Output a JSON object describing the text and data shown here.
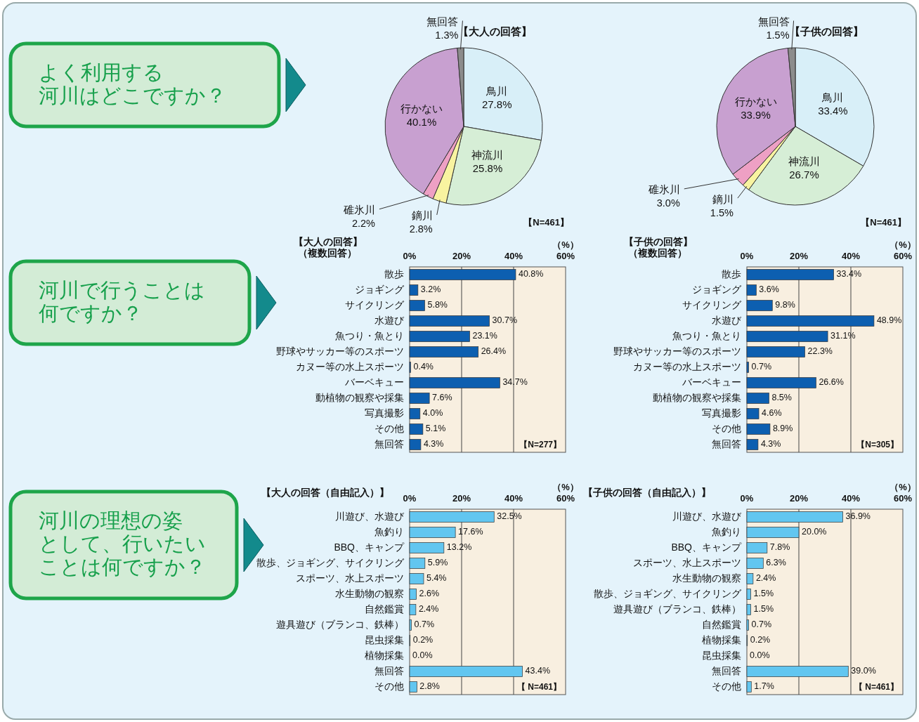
{
  "chart_data": [
    {
      "type": "other",
      "title": "よく利用する河川はどこですか？"
    },
    {
      "type": "pie",
      "title": "【大人の回答】",
      "categories": [
        "鳥川",
        "神流川",
        "鏑川",
        "碓氷川",
        "行かない",
        "無回答"
      ],
      "values": [
        27.8,
        25.8,
        2.8,
        2.2,
        40.1,
        1.3
      ],
      "value_labels": [
        "27.8%",
        "25.8%",
        "2.8%",
        "2.2%",
        "40.1%",
        "1.3%"
      ],
      "colors": [
        "#d8eff8",
        "#d6eed6",
        "#f8f3a0",
        "#eea0c4",
        "#c8a0d0",
        "#8c8c8c"
      ],
      "annotations": [
        "【N=461】"
      ]
    },
    {
      "type": "pie",
      "title": "【子供の回答】",
      "categories": [
        "鳥川",
        "神流川",
        "鏑川",
        "碓氷川",
        "行かない",
        "無回答"
      ],
      "values": [
        33.4,
        26.7,
        1.5,
        3.0,
        33.9,
        1.5
      ],
      "value_labels": [
        "33.4%",
        "26.7%",
        "1.5%",
        "3.0%",
        "33.9%",
        "1.5%"
      ],
      "colors": [
        "#d8eff8",
        "#d6eed6",
        "#f8f3a0",
        "#eea0c4",
        "#c8a0d0",
        "#8c8c8c"
      ],
      "annotations": [
        "【N=461】"
      ]
    },
    {
      "type": "other",
      "title": "河川で行うことは何ですか？"
    },
    {
      "type": "bar",
      "orientation": "horizontal",
      "title": "【大人の回答】",
      "subtitle": "（複数回答）",
      "xlabel": "（%）",
      "categories": [
        "散歩",
        "ジョギング",
        "サイクリング",
        "水遊び",
        "魚つり・魚とり",
        "野球やサッカー等のスポーツ",
        "カヌー等の水上スポーツ",
        "バーベキュー",
        "動植物の観察や採集",
        "写真撮影",
        "その他",
        "無回答"
      ],
      "series": [
        {
          "color": "#0d5fb0",
          "values": [
            40.8,
            3.2,
            5.8,
            30.7,
            23.1,
            26.4,
            0.4,
            34.7,
            7.6,
            4.0,
            5.1,
            4.3
          ],
          "value_labels": [
            "40.8%",
            "3.2%",
            "5.8%",
            "30.7%",
            "23.1%",
            "26.4%",
            "0.4%",
            "34.7%",
            "7.6%",
            "4.0%",
            "5.1%",
            "4.3%"
          ]
        }
      ],
      "xlim": [
        0,
        60
      ],
      "xticks": [
        {
          "value": 0,
          "label": "0%"
        },
        {
          "value": 20,
          "label": "20%"
        },
        {
          "value": 40,
          "label": "40%"
        },
        {
          "value": 60,
          "label": "60%"
        }
      ],
      "grid": "x",
      "annotations": [
        "【N=277】"
      ]
    },
    {
      "type": "bar",
      "orientation": "horizontal",
      "title": "【子供の回答】",
      "subtitle": "（複数回答）",
      "xlabel": "（%）",
      "categories": [
        "散歩",
        "ジョギング",
        "サイクリング",
        "水遊び",
        "魚つり・魚とり",
        "野球やサッカー等のスポーツ",
        "カヌー等の水上スポーツ",
        "バーベキュー",
        "動植物の観察や採集",
        "写真撮影",
        "その他",
        "無回答"
      ],
      "series": [
        {
          "color": "#0d5fb0",
          "values": [
            33.4,
            3.6,
            9.8,
            48.9,
            31.1,
            22.3,
            0.7,
            26.6,
            8.5,
            4.6,
            8.9,
            4.3
          ],
          "value_labels": [
            "33.4%",
            "3.6%",
            "9.8%",
            "48.9%",
            "31.1%",
            "22.3%",
            "0.7%",
            "26.6%",
            "8.5%",
            "4.6%",
            "8.9%",
            "4.3%"
          ]
        }
      ],
      "xlim": [
        0,
        60
      ],
      "xticks": [
        {
          "value": 0,
          "label": "0%"
        },
        {
          "value": 20,
          "label": "20%"
        },
        {
          "value": 40,
          "label": "40%"
        },
        {
          "value": 60,
          "label": "60%"
        }
      ],
      "grid": "x",
      "annotations": [
        "【N=305】"
      ]
    },
    {
      "type": "other",
      "title": "河川の理想の姿として、行いたいことは何ですか？"
    },
    {
      "type": "bar",
      "orientation": "horizontal",
      "title": "【大人の回答（自由記入）】",
      "xlabel": "（%）",
      "categories": [
        "川遊び、水遊び",
        "魚釣り",
        "BBQ、キャンプ",
        "散歩、ジョギング、サイクリング",
        "スポーツ、水上スポーツ",
        "水生動物の観察",
        "自然鑑賞",
        "遊具遊び（ブランコ、鉄棒）",
        "昆虫採集",
        "植物採集",
        "無回答",
        "その他"
      ],
      "series": [
        {
          "color": "#62c6f0",
          "values": [
            32.5,
            17.6,
            13.2,
            5.9,
            5.4,
            2.6,
            2.4,
            0.7,
            0.2,
            0.0,
            43.4,
            2.8
          ],
          "value_labels": [
            "32.5%",
            "17.6%",
            "13.2%",
            "5.9%",
            "5.4%",
            "2.6%",
            "2.4%",
            "0.7%",
            "0.2%",
            "0.0%",
            "43.4%",
            "2.8%"
          ]
        }
      ],
      "xlim": [
        0,
        60
      ],
      "xticks": [
        {
          "value": 0,
          "label": "0%"
        },
        {
          "value": 20,
          "label": "20%"
        },
        {
          "value": 40,
          "label": "40%"
        },
        {
          "value": 60,
          "label": "60%"
        }
      ],
      "grid": "x",
      "annotations": [
        "【 N=461】"
      ]
    },
    {
      "type": "bar",
      "orientation": "horizontal",
      "title": "【子供の回答（自由記入）】",
      "xlabel": "（%）",
      "categories": [
        "川遊び、水遊び",
        "魚釣り",
        "BBQ、キャンプ",
        "スポーツ、水上スポーツ",
        "水生動物の観察",
        "散歩、ジョギング、サイクリング",
        "遊具遊び（ブランコ、鉄棒）",
        "自然鑑賞",
        "植物採集",
        "昆虫採集",
        "無回答",
        "その他"
      ],
      "series": [
        {
          "color": "#62c6f0",
          "values": [
            36.9,
            20.0,
            7.8,
            6.3,
            2.4,
            1.5,
            1.5,
            0.7,
            0.2,
            0.0,
            39.0,
            1.7
          ],
          "value_labels": [
            "36.9%",
            "20.0%",
            "7.8%",
            "6.3%",
            "2.4%",
            "1.5%",
            "1.5%",
            "0.7%",
            "0.2%",
            "0.0%",
            "39.0%",
            "1.7%"
          ]
        }
      ],
      "xlim": [
        0,
        60
      ],
      "xticks": [
        {
          "value": 0,
          "label": "0%"
        },
        {
          "value": 20,
          "label": "20%"
        },
        {
          "value": 40,
          "label": "40%"
        },
        {
          "value": 60,
          "label": "60%"
        }
      ],
      "grid": "x",
      "annotations": [
        "【 N=461】"
      ]
    }
  ]
}
